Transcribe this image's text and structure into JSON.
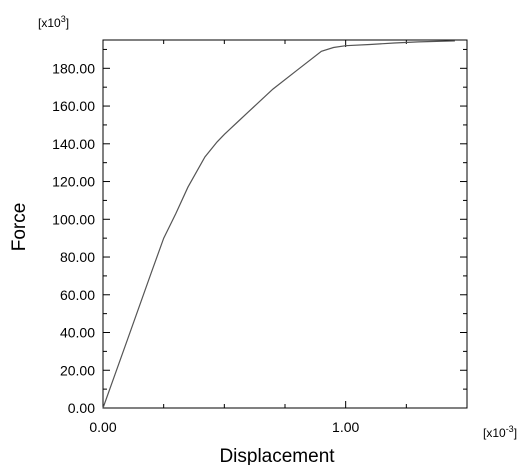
{
  "chart_data": {
    "type": "line",
    "xlabel": "Displacement",
    "ylabel": "Force",
    "x_multiplier": {
      "base": "[x10",
      "exp": "-3",
      "close": "]"
    },
    "y_multiplier": {
      "base": "[x10",
      "exp": "3",
      "close": "]"
    },
    "xlim": [
      0,
      1.5
    ],
    "ylim": [
      0,
      195
    ],
    "x_ticks": [
      0,
      1
    ],
    "x_tick_labels": [
      "0.00",
      "1.00"
    ],
    "y_ticks": [
      0,
      20,
      40,
      60,
      80,
      100,
      120,
      140,
      160,
      180
    ],
    "y_tick_labels": [
      "0.00",
      "20.00",
      "40.00",
      "60.00",
      "80.00",
      "100.00",
      "120.00",
      "140.00",
      "160.00",
      "180.00"
    ],
    "grid": false,
    "series": [
      {
        "x": [
          0.0,
          0.1,
          0.2,
          0.25,
          0.3,
          0.35,
          0.42,
          0.47,
          0.5,
          0.55,
          0.6,
          0.7,
          0.8,
          0.9,
          0.95,
          1.0,
          1.1,
          1.2,
          1.3,
          1.45
        ],
        "y": [
          0.0,
          36.0,
          72.0,
          90.0,
          103.0,
          117.0,
          133.0,
          141.0,
          145.0,
          151.0,
          157.0,
          169.0,
          179.0,
          189.0,
          191.0,
          192.0,
          192.6,
          193.4,
          194.0,
          194.5
        ]
      }
    ]
  }
}
